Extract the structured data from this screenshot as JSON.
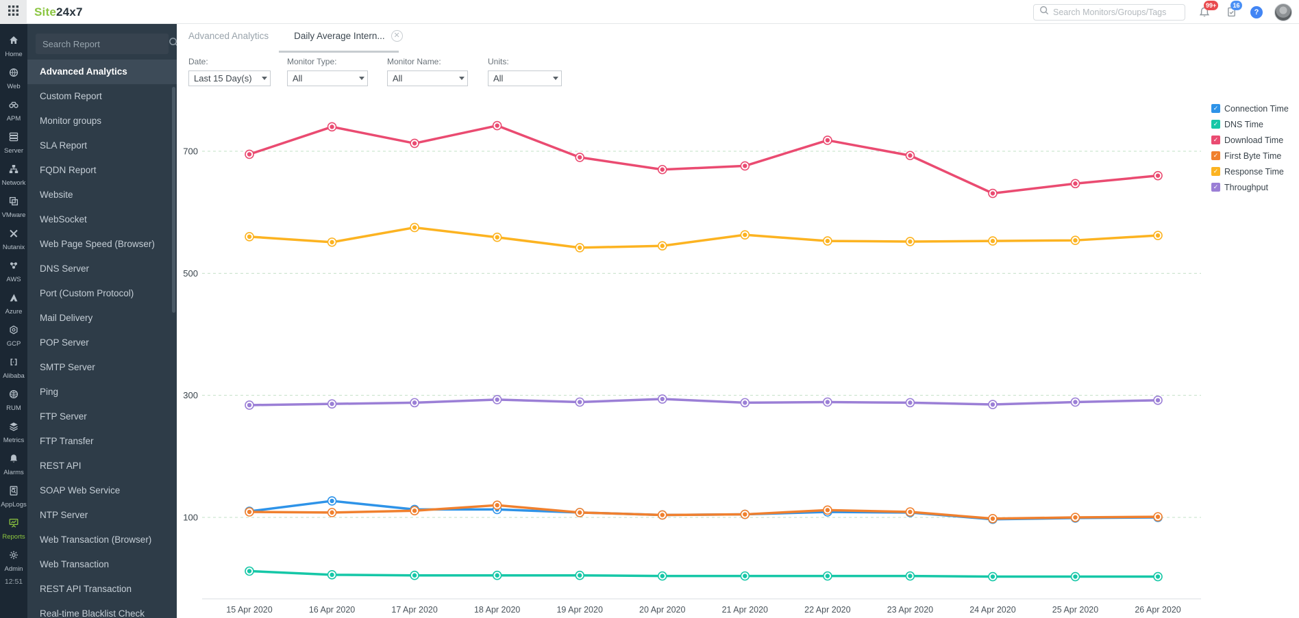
{
  "topbar": {
    "logo": {
      "part1": "Site",
      "part2": "24x7"
    },
    "search": {
      "placeholder": "Search Monitors/Groups/Tags"
    },
    "notifications_badge": "99+",
    "tasks_badge": "16",
    "help_label": "?"
  },
  "rail": {
    "items": [
      {
        "icon": "home",
        "label": "Home"
      },
      {
        "icon": "web",
        "label": "Web"
      },
      {
        "icon": "apm",
        "label": "APM"
      },
      {
        "icon": "server",
        "label": "Server"
      },
      {
        "icon": "network",
        "label": "Network"
      },
      {
        "icon": "vmware",
        "label": "VMware"
      },
      {
        "icon": "nutanix",
        "label": "Nutanix"
      },
      {
        "icon": "aws",
        "label": "AWS"
      },
      {
        "icon": "azure",
        "label": "Azure"
      },
      {
        "icon": "gcp",
        "label": "GCP"
      },
      {
        "icon": "alibaba",
        "label": "Alibaba"
      },
      {
        "icon": "rum",
        "label": "RUM"
      },
      {
        "icon": "metrics",
        "label": "Metrics"
      },
      {
        "icon": "alarms",
        "label": "Alarms"
      },
      {
        "icon": "applogs",
        "label": "AppLogs"
      },
      {
        "icon": "reports",
        "label": "Reports"
      },
      {
        "icon": "admin",
        "label": "Admin"
      }
    ],
    "active_item": "Reports",
    "time": "12:51"
  },
  "sidebar": {
    "search_placeholder": "Search Report",
    "active_item": "Advanced Analytics",
    "items": [
      "Advanced Analytics",
      "Custom Report",
      "Monitor groups",
      "SLA Report",
      "FQDN Report",
      "Website",
      "WebSocket",
      "Web Page Speed (Browser)",
      "DNS Server",
      "Port (Custom Protocol)",
      "Mail Delivery",
      "POP Server",
      "SMTP Server",
      "Ping",
      "FTP Server",
      "FTP Transfer",
      "REST API",
      "SOAP Web Service",
      "NTP Server",
      "Web Transaction (Browser)",
      "Web Transaction",
      "REST API Transaction",
      "Real-time Blacklist Check"
    ]
  },
  "tabs": [
    {
      "label": "Advanced Analytics",
      "active": false
    },
    {
      "label": "Daily Average Intern...",
      "active": true,
      "closable": true
    }
  ],
  "filters": [
    {
      "label": "Date:",
      "value": "Last 15 Day(s)"
    },
    {
      "label": "Monitor Type:",
      "value": "All"
    },
    {
      "label": "Monitor Name:",
      "value": "All"
    },
    {
      "label": "Units:",
      "value": "All"
    }
  ],
  "chart_data": {
    "type": "line",
    "title": "",
    "xlabel": "",
    "ylabel": "",
    "categories": [
      "15 Apr 2020",
      "16 Apr 2020",
      "17 Apr 2020",
      "18 Apr 2020",
      "19 Apr 2020",
      "20 Apr 2020",
      "21 Apr 2020",
      "22 Apr 2020",
      "23 Apr 2020",
      "24 Apr 2020",
      "25 Apr 2020",
      "26 Apr 2020"
    ],
    "y_ticks": [
      100,
      300,
      500,
      700
    ],
    "ylim": [
      0,
      800
    ],
    "grid": "horizontal-dashed",
    "legend_position": "right",
    "series": [
      {
        "name": "Connection Time",
        "color": "#2e93e8",
        "values": [
          110,
          127,
          113,
          113,
          108,
          104,
          105,
          109,
          108,
          97,
          99,
          100
        ]
      },
      {
        "name": "DNS Time",
        "color": "#16c7a7",
        "values": [
          12,
          6,
          5,
          5,
          5,
          4,
          4,
          4,
          4,
          3,
          3,
          3
        ]
      },
      {
        "name": "Download Time",
        "color": "#ea4b71",
        "values": [
          695,
          740,
          713,
          742,
          690,
          670,
          676,
          718,
          693,
          631,
          647,
          660
        ]
      },
      {
        "name": "First Byte Time",
        "color": "#f0802e",
        "values": [
          109,
          108,
          111,
          120,
          108,
          104,
          105,
          112,
          109,
          98,
          100,
          101
        ]
      },
      {
        "name": "Response Time",
        "color": "#fcb321",
        "values": [
          560,
          551,
          575,
          559,
          542,
          545,
          563,
          553,
          552,
          553,
          554,
          562
        ]
      },
      {
        "name": "Throughput",
        "color": "#9b7fd6",
        "values": [
          284,
          286,
          288,
          293,
          289,
          294,
          288,
          289,
          288,
          285,
          289,
          292
        ]
      }
    ]
  }
}
